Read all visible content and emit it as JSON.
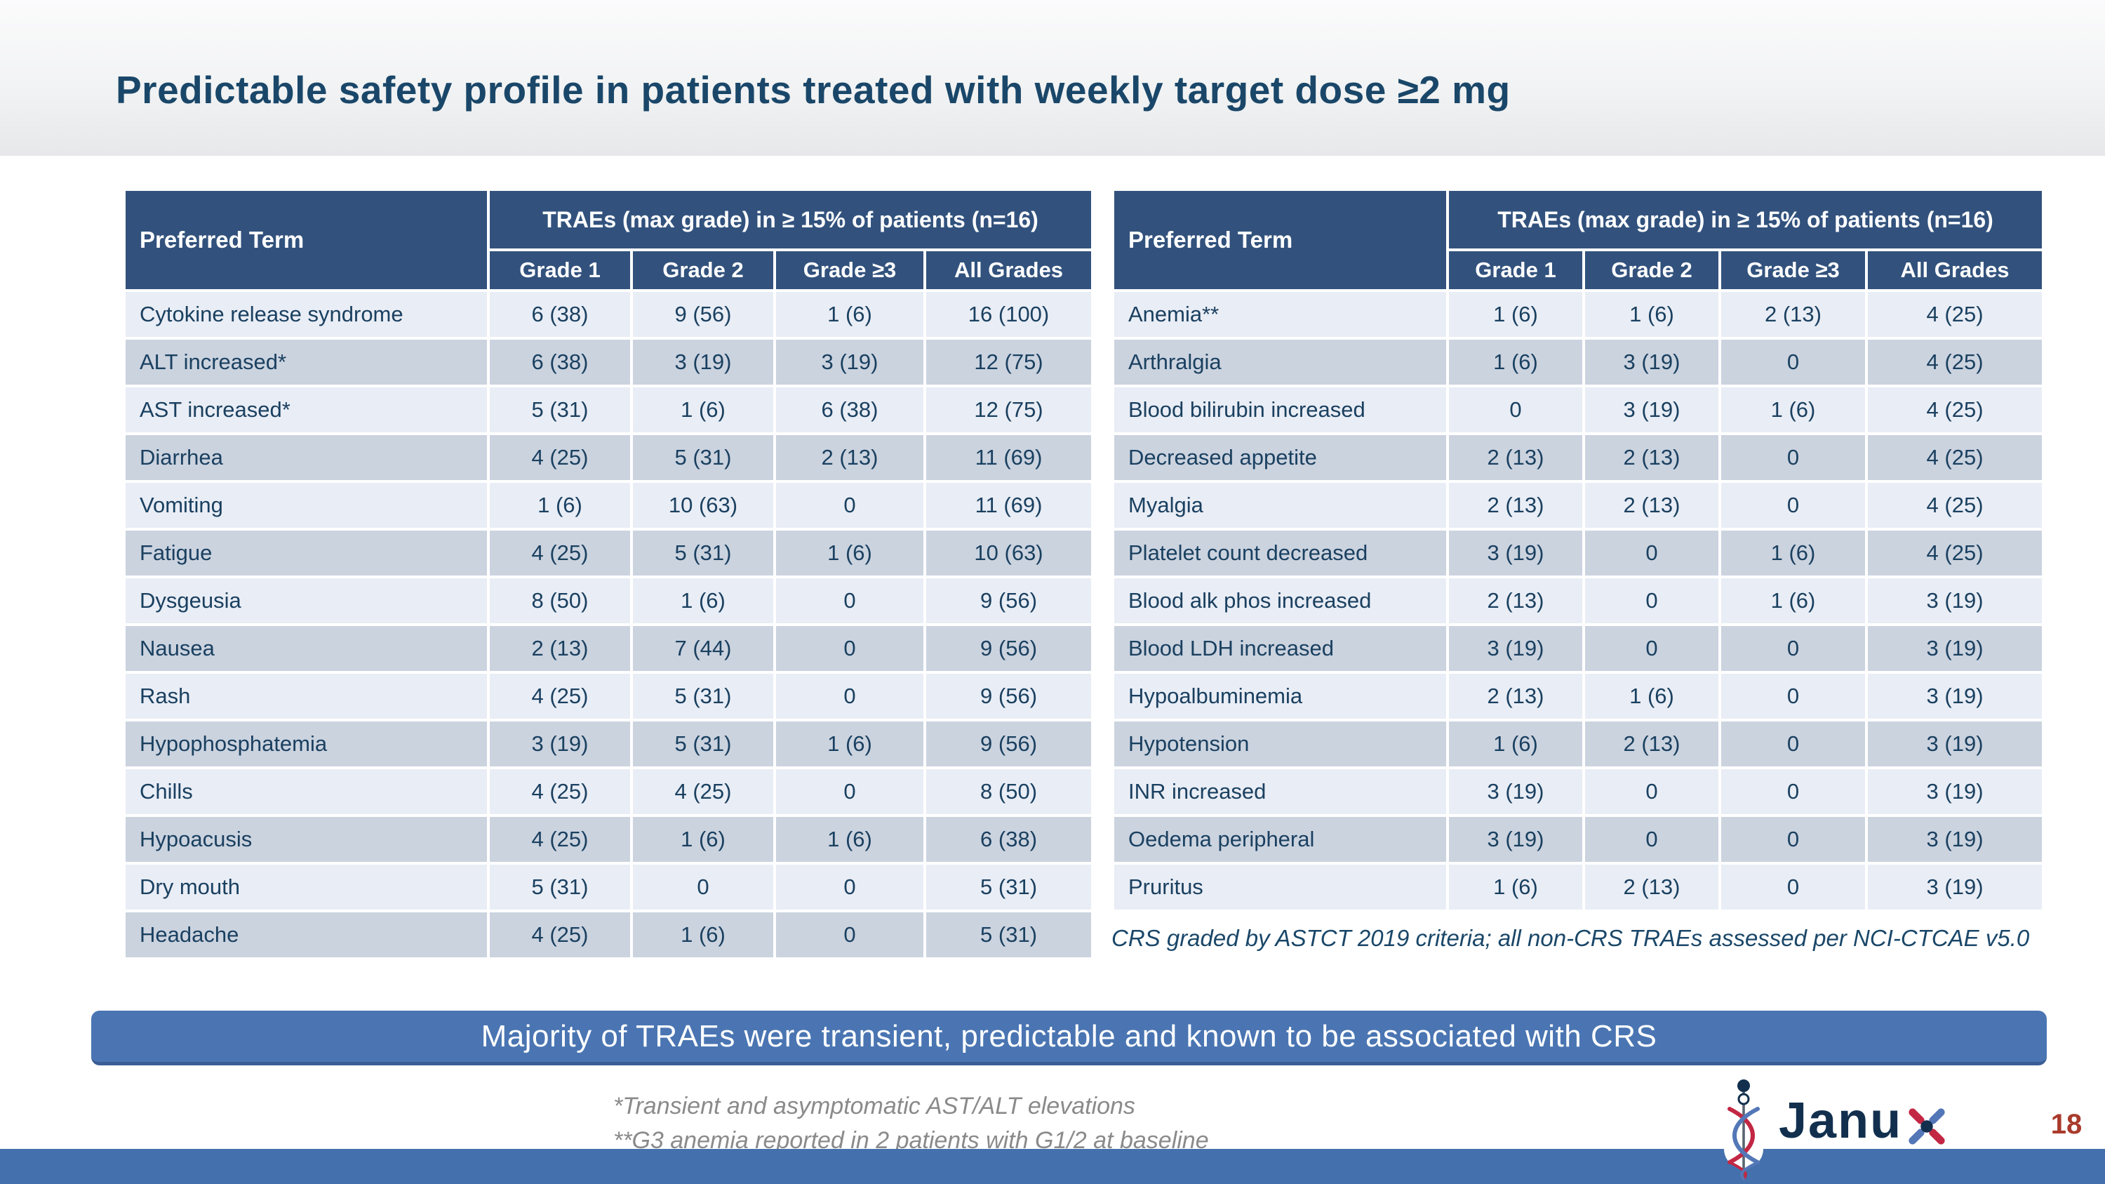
{
  "slide": {
    "title": "Predictable safety profile in patients treated with weekly target dose ≥2 mg",
    "banner": "Majority of TRAEs were transient, predictable and known to be associated with CRS",
    "crs_note": "CRS graded by ASTCT 2019 criteria; all non-CRS TRAEs assessed per NCI-CTCAE v5.0",
    "footnote_1": "*Transient and asymptomatic AST/ALT elevations",
    "footnote_2": "**G3 anemia reported in 2 patients with G1/2 at baseline",
    "page_number": "18",
    "logo_text": "Janu"
  },
  "colors": {
    "title_navy": "#1a4769",
    "cell_navy": "#1a4060",
    "header_blue": "#32527d",
    "row_light": "#e9edf5",
    "row_dark": "#cbd3df",
    "banner_blue": "#4a75b2",
    "bottom_bar_blue": "#4470ad",
    "accent_red": "#a93b2c",
    "logo_red": "#c22743",
    "logo_blue": "#5377b7"
  },
  "tables": {
    "left": {
      "col_header": "Preferred Term",
      "span_header": "TRAEs (max grade) in ≥ 15% of patients (n=16)",
      "grade_headers": [
        "Grade 1",
        "Grade 2",
        "Grade ≥3",
        "All Grades"
      ],
      "rows": [
        {
          "term": "Cytokine release syndrome",
          "g1": "6 (38)",
          "g2": "9 (56)",
          "g3": "1 (6)",
          "all": "16 (100)"
        },
        {
          "term": "ALT increased*",
          "g1": "6 (38)",
          "g2": "3 (19)",
          "g3": "3 (19)",
          "all": "12 (75)"
        },
        {
          "term": "AST increased*",
          "g1": "5 (31)",
          "g2": "1 (6)",
          "g3": "6 (38)",
          "all": "12 (75)"
        },
        {
          "term": "Diarrhea",
          "g1": "4 (25)",
          "g2": "5 (31)",
          "g3": "2 (13)",
          "all": "11 (69)"
        },
        {
          "term": "Vomiting",
          "g1": "1 (6)",
          "g2": "10 (63)",
          "g3": "0",
          "all": "11 (69)"
        },
        {
          "term": "Fatigue",
          "g1": "4 (25)",
          "g2": "5 (31)",
          "g3": "1 (6)",
          "all": "10 (63)"
        },
        {
          "term": "Dysgeusia",
          "g1": "8 (50)",
          "g2": "1 (6)",
          "g3": "0",
          "all": "9 (56)"
        },
        {
          "term": "Nausea",
          "g1": "2 (13)",
          "g2": "7 (44)",
          "g3": "0",
          "all": "9 (56)"
        },
        {
          "term": "Rash",
          "g1": "4 (25)",
          "g2": "5 (31)",
          "g3": "0",
          "all": "9 (56)"
        },
        {
          "term": "Hypophosphatemia",
          "g1": "3 (19)",
          "g2": "5 (31)",
          "g3": "1 (6)",
          "all": "9 (56)"
        },
        {
          "term": "Chills",
          "g1": "4 (25)",
          "g2": "4 (25)",
          "g3": "0",
          "all": "8 (50)"
        },
        {
          "term": "Hypoacusis",
          "g1": "4 (25)",
          "g2": "1 (6)",
          "g3": "1 (6)",
          "all": "6 (38)"
        },
        {
          "term": "Dry mouth",
          "g1": "5 (31)",
          "g2": "0",
          "g3": "0",
          "all": "5 (31)"
        },
        {
          "term": "Headache",
          "g1": "4 (25)",
          "g2": "1 (6)",
          "g3": "0",
          "all": "5 (31)"
        }
      ]
    },
    "right": {
      "col_header": "Preferred Term",
      "span_header": "TRAEs (max grade) in ≥ 15% of patients (n=16)",
      "grade_headers": [
        "Grade 1",
        "Grade 2",
        "Grade ≥3",
        "All Grades"
      ],
      "rows": [
        {
          "term": "Anemia**",
          "g1": "1 (6)",
          "g2": "1 (6)",
          "g3": "2 (13)",
          "all": "4 (25)"
        },
        {
          "term": "Arthralgia",
          "g1": "1 (6)",
          "g2": "3 (19)",
          "g3": "0",
          "all": "4 (25)"
        },
        {
          "term": "Blood bilirubin increased",
          "g1": "0",
          "g2": "3 (19)",
          "g3": "1 (6)",
          "all": "4 (25)"
        },
        {
          "term": "Decreased appetite",
          "g1": "2 (13)",
          "g2": "2 (13)",
          "g3": "0",
          "all": "4 (25)"
        },
        {
          "term": "Myalgia",
          "g1": "2 (13)",
          "g2": "2 (13)",
          "g3": "0",
          "all": "4 (25)"
        },
        {
          "term": "Platelet count decreased",
          "g1": "3 (19)",
          "g2": "0",
          "g3": "1 (6)",
          "all": "4 (25)"
        },
        {
          "term": "Blood alk phos increased",
          "g1": "2 (13)",
          "g2": "0",
          "g3": "1 (6)",
          "all": "3 (19)"
        },
        {
          "term": "Blood LDH increased",
          "g1": "3 (19)",
          "g2": "0",
          "g3": "0",
          "all": "3 (19)"
        },
        {
          "term": "Hypoalbuminemia",
          "g1": "2 (13)",
          "g2": "1 (6)",
          "g3": "0",
          "all": "3 (19)"
        },
        {
          "term": "Hypotension",
          "g1": "1 (6)",
          "g2": "2 (13)",
          "g3": "0",
          "all": "3 (19)"
        },
        {
          "term": "INR increased",
          "g1": "3 (19)",
          "g2": "0",
          "g3": "0",
          "all": "3 (19)"
        },
        {
          "term": "Oedema peripheral",
          "g1": "3 (19)",
          "g2": "0",
          "g3": "0",
          "all": "3 (19)"
        },
        {
          "term": "Pruritus",
          "g1": "1 (6)",
          "g2": "2 (13)",
          "g3": "0",
          "all": "3 (19)"
        }
      ]
    }
  }
}
